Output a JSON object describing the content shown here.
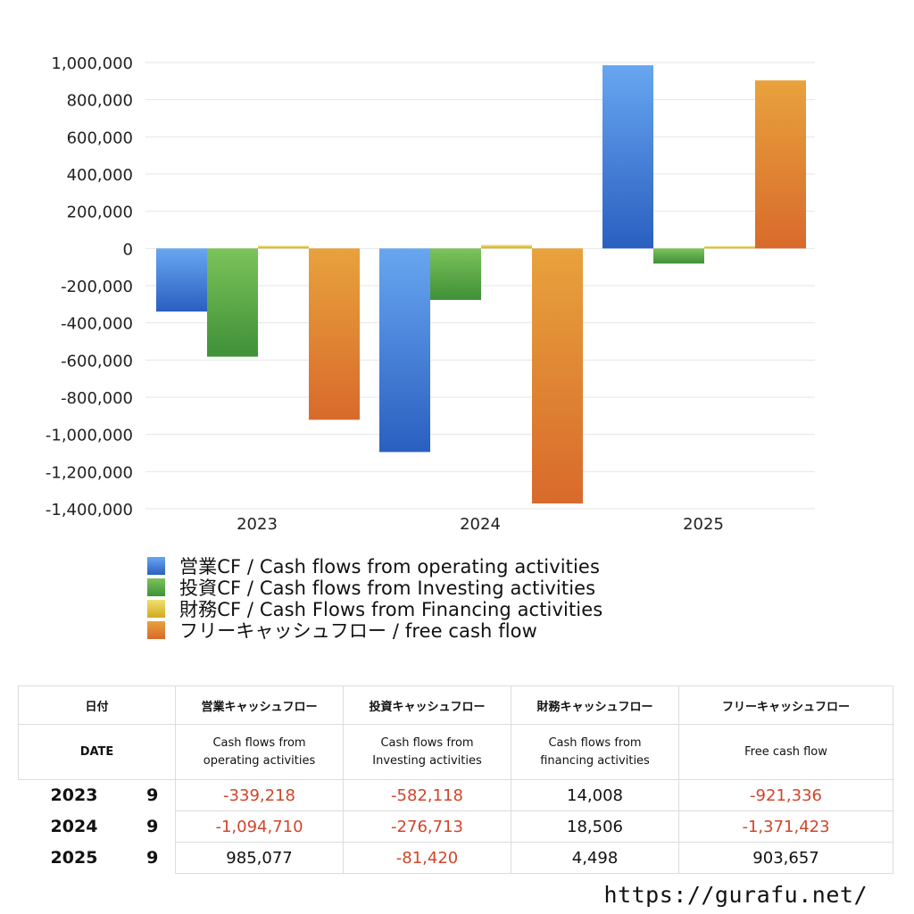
{
  "chart_data": {
    "type": "bar",
    "categories": [
      "2023",
      "2024",
      "2025"
    ],
    "ylim": [
      -1400000,
      1000000
    ],
    "yticks": [
      1000000,
      800000,
      600000,
      400000,
      200000,
      0,
      -200000,
      -400000,
      -600000,
      -800000,
      -1000000,
      -1200000,
      -1400000
    ],
    "ytick_labels": [
      "1,000,000",
      "800,000",
      "600,000",
      "400,000",
      "200,000",
      "0",
      "-200,000",
      "-400,000",
      "-600,000",
      "-800,000",
      "-1,000,000",
      "-1,200,000",
      "-1,400,000"
    ],
    "grid": true,
    "legend_position": "bottom",
    "series": [
      {
        "name": "営業CF / Cash flows from operating activities",
        "values": [
          -339218,
          -1094710,
          985077
        ],
        "color_top": "#68a6f0",
        "color_bottom": "#2a5fc0"
      },
      {
        "name": "投資CF / Cash flows from Investing activities",
        "values": [
          -582118,
          -276713,
          -81420
        ],
        "color_top": "#7cc35a",
        "color_bottom": "#3f9038"
      },
      {
        "name": "財務CF / Cash Flows from Financing activities",
        "values": [
          14008,
          18506,
          4498
        ],
        "color_top": "#f0e070",
        "color_bottom": "#d2a820"
      },
      {
        "name": "フリーキャッシュフロー / free cash flow",
        "values": [
          -921336,
          -1371423,
          903657
        ],
        "color_top": "#e8a23c",
        "color_bottom": "#d86a2c"
      }
    ]
  },
  "table": {
    "headers_jp": [
      "日付",
      "営業キャッシュフロー",
      "投資キャッシュフロー",
      "財務キャッシュフロー",
      "フリーキャッシュフロー"
    ],
    "headers_en": [
      "DATE",
      "Cash flows from operating activities",
      "Cash flows from Investing activities",
      "Cash flows from financing activities",
      "Free cash flow"
    ],
    "rows": [
      {
        "year": "2023",
        "month": "9",
        "values": [
          "-339,218",
          "-582,118",
          "14,008",
          "-921,336"
        ]
      },
      {
        "year": "2024",
        "month": "9",
        "values": [
          "-1,094,710",
          "-276,713",
          "18,506",
          "-1,371,423"
        ]
      },
      {
        "year": "2025",
        "month": "9",
        "values": [
          "985,077",
          "-81,420",
          "4,498",
          "903,657"
        ]
      }
    ]
  },
  "footer": {
    "url": "https://gurafu.net/"
  }
}
